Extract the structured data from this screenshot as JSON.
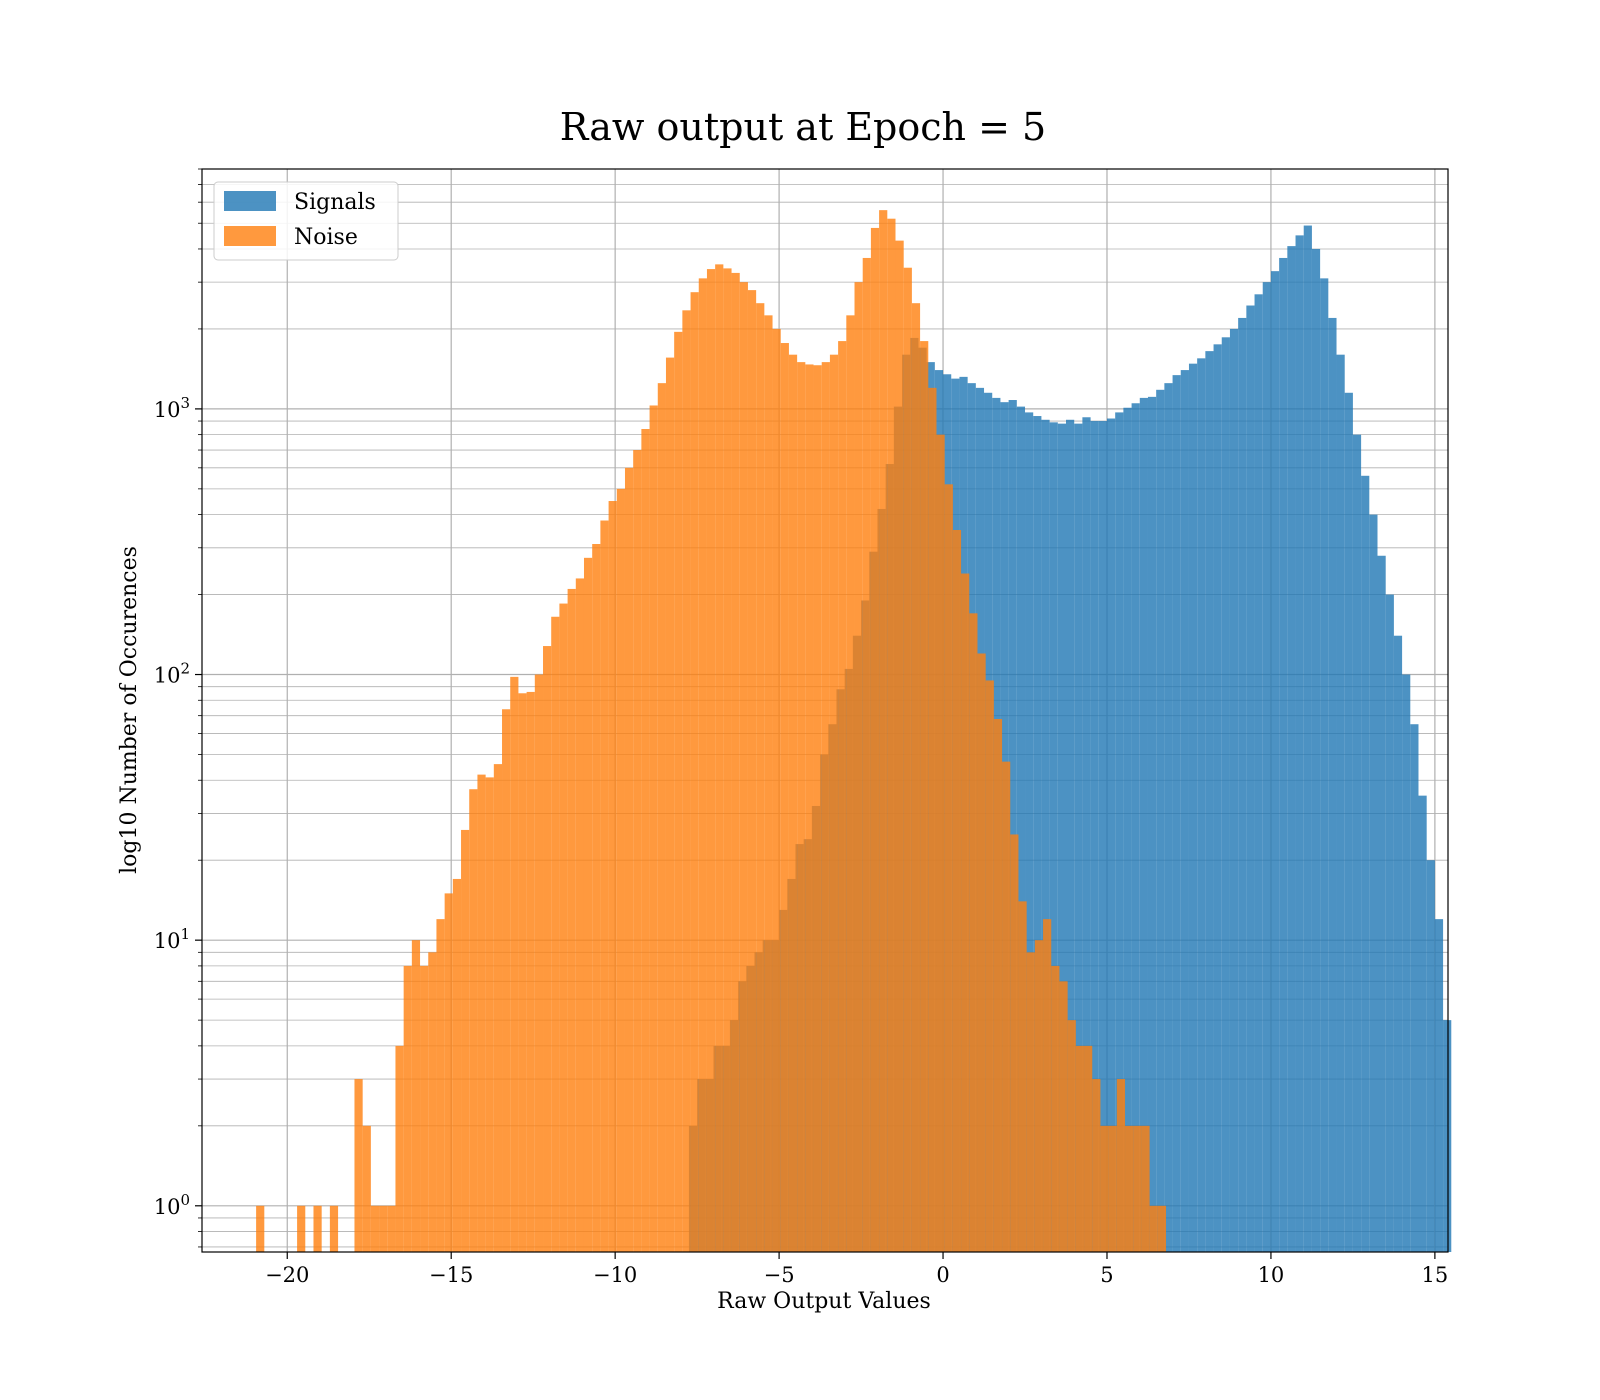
{
  "chart_data": {
    "type": "histogram",
    "title": "Raw output at Epoch = 5",
    "xlabel": "Raw Output Values",
    "ylabel": "log10 Number of Occurences",
    "yscale": "log",
    "xlim": [
      -22.6,
      15.4
    ],
    "ylim": [
      0.67,
      8000
    ],
    "xticks": [
      -20,
      -15,
      -10,
      -5,
      0,
      5,
      10,
      15
    ],
    "xtick_labels": [
      "−20",
      "−15",
      "−10",
      "−5",
      "0",
      "5",
      "10",
      "15"
    ],
    "yticks": [
      {
        "value": 1,
        "base": "10",
        "exp": "0"
      },
      {
        "value": 10,
        "base": "10",
        "exp": "1"
      },
      {
        "value": 100,
        "base": "10",
        "exp": "2"
      },
      {
        "value": 1000,
        "base": "10",
        "exp": "3"
      }
    ],
    "grid": true,
    "legend_position": "upper left",
    "series": [
      {
        "name": "Signals",
        "color": "#1f77b4",
        "alpha": 0.8,
        "bin_start": -7.75,
        "bin_width": 0.25,
        "values": [
          2,
          3,
          3,
          4,
          4,
          5,
          7,
          8,
          9,
          10,
          10,
          13,
          17,
          23,
          24,
          32,
          50,
          65,
          88,
          105,
          140,
          190,
          290,
          420,
          620,
          1020,
          1600,
          1850,
          1700,
          1500,
          1400,
          1350,
          1300,
          1320,
          1250,
          1200,
          1150,
          1100,
          1060,
          1080,
          1020,
          970,
          940,
          910,
          890,
          880,
          910,
          880,
          930,
          900,
          900,
          920,
          970,
          1010,
          1050,
          1100,
          1110,
          1180,
          1250,
          1340,
          1400,
          1480,
          1550,
          1650,
          1750,
          1860,
          2000,
          2200,
          2450,
          2700,
          3000,
          3300,
          3700,
          4100,
          4500,
          4900,
          4000,
          3100,
          2200,
          1600,
          1150,
          800,
          560,
          400,
          280,
          200,
          140,
          100,
          65,
          35,
          20,
          12,
          5
        ]
      },
      {
        "name": "Noise",
        "color": "#ff7f0e",
        "alpha": 0.8,
        "bin_start": -20.95,
        "bin_width": 0.25,
        "values": [
          1,
          0,
          0,
          0,
          0,
          1,
          0,
          1,
          0,
          1,
          0,
          0,
          3,
          2,
          1,
          1,
          1,
          4,
          8,
          10,
          8,
          9,
          12,
          15,
          17,
          26,
          37,
          42,
          41,
          46,
          74,
          98,
          85,
          86,
          100,
          128,
          165,
          185,
          210,
          230,
          275,
          310,
          380,
          450,
          500,
          600,
          700,
          840,
          1030,
          1250,
          1560,
          1950,
          2350,
          2750,
          3100,
          3360,
          3500,
          3380,
          3250,
          3000,
          2800,
          2500,
          2250,
          2000,
          1770,
          1600,
          1500,
          1470,
          1460,
          1500,
          1600,
          1800,
          2250,
          3000,
          3700,
          4800,
          5600,
          5200,
          4300,
          3400,
          2500,
          1800,
          1200,
          800,
          520,
          350,
          240,
          170,
          120,
          95,
          68,
          47,
          25,
          14,
          9,
          10,
          12,
          8,
          7,
          5,
          4,
          4,
          3,
          2,
          2,
          3,
          2,
          2,
          2,
          1,
          1
        ]
      }
    ]
  }
}
